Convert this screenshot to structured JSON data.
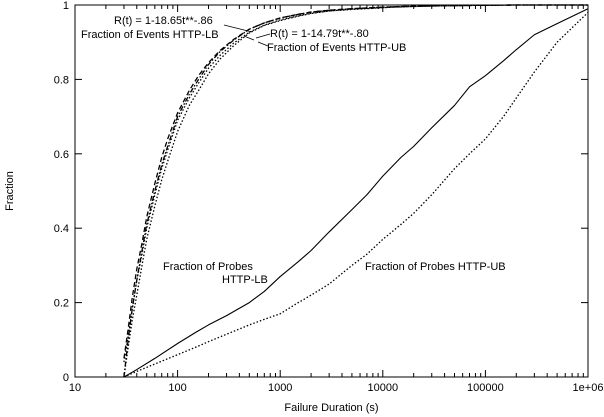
{
  "chart_data": {
    "type": "line",
    "xscale": "log",
    "xlim": [
      10,
      1000000
    ],
    "ylim": [
      0,
      1
    ],
    "xlabel": "Failure Duration (s)",
    "ylabel": "Fraction",
    "grid": false,
    "legend": "none",
    "xticks": [
      10,
      100,
      1000,
      10000,
      100000,
      1000000
    ],
    "xtick_labels": [
      "10",
      "100",
      "1000",
      "10000",
      "100000",
      "1e+06"
    ],
    "yticks": [
      0,
      0.2,
      0.4,
      0.6,
      0.8,
      1
    ],
    "ytick_labels": [
      "0",
      "0.2",
      "0.4",
      "0.6",
      "0.8",
      "1"
    ],
    "series": [
      {
        "name": "Fraction of Events HTTP-LB",
        "style": "dash-dot",
        "x": [
          30,
          33,
          36,
          40,
          45,
          50,
          60,
          70,
          80,
          100,
          130,
          160,
          200,
          260,
          350,
          500,
          700,
          1000,
          1500,
          2000,
          3000,
          5000,
          8000,
          12000,
          20000,
          40000,
          80000,
          200000,
          500000,
          1000000
        ],
        "y": [
          0,
          0.1,
          0.18,
          0.26,
          0.34,
          0.41,
          0.5,
          0.57,
          0.62,
          0.7,
          0.76,
          0.8,
          0.84,
          0.875,
          0.905,
          0.935,
          0.952,
          0.965,
          0.975,
          0.981,
          0.986,
          0.99,
          0.993,
          0.995,
          0.997,
          0.998,
          0.999,
          1.0,
          1.0,
          1.0
        ]
      },
      {
        "name": "Fraction of Events HTTP-UB",
        "style": "dotted",
        "x": [
          30,
          33,
          36,
          40,
          45,
          50,
          60,
          70,
          80,
          100,
          130,
          160,
          200,
          260,
          350,
          500,
          700,
          1000,
          1500,
          2000,
          3000,
          5000,
          8000,
          12000,
          20000,
          40000,
          80000,
          200000,
          500000,
          1000000
        ],
        "y": [
          0,
          0.08,
          0.15,
          0.22,
          0.3,
          0.37,
          0.46,
          0.53,
          0.58,
          0.66,
          0.73,
          0.77,
          0.815,
          0.855,
          0.89,
          0.925,
          0.945,
          0.958,
          0.97,
          0.977,
          0.984,
          0.988,
          0.991,
          0.994,
          0.996,
          0.998,
          0.999,
          1.0,
          1.0,
          1.0
        ]
      },
      {
        "name": "R(t) = 1-18.65t**-.86",
        "style": "dashed",
        "x": [
          30,
          33,
          36,
          40,
          45,
          50,
          60,
          70,
          80,
          100,
          130,
          160,
          200,
          260,
          350,
          500,
          700,
          1000,
          1500,
          2000,
          3000,
          5000,
          8000,
          12000,
          20000,
          40000,
          80000,
          200000,
          500000,
          1000000
        ],
        "y": [
          0.05,
          0.13,
          0.21,
          0.29,
          0.36,
          0.43,
          0.52,
          0.59,
          0.64,
          0.71,
          0.77,
          0.81,
          0.845,
          0.878,
          0.907,
          0.935,
          0.952,
          0.965,
          0.975,
          0.981,
          0.986,
          0.99,
          0.993,
          0.995,
          0.997,
          0.998,
          0.999,
          1.0,
          1.0,
          1.0
        ]
      },
      {
        "name": "R(t) = 1-14.79t**-.80",
        "style": "dotted",
        "x": [
          30,
          33,
          36,
          40,
          45,
          50,
          60,
          70,
          80,
          100,
          130,
          160,
          200,
          260,
          350,
          500,
          700,
          1000,
          1500,
          2000,
          3000,
          5000,
          8000,
          12000,
          20000,
          40000,
          80000,
          200000,
          500000,
          1000000
        ],
        "y": [
          0.04,
          0.11,
          0.18,
          0.26,
          0.33,
          0.4,
          0.49,
          0.56,
          0.61,
          0.69,
          0.75,
          0.79,
          0.83,
          0.865,
          0.897,
          0.927,
          0.946,
          0.96,
          0.971,
          0.978,
          0.984,
          0.989,
          0.992,
          0.994,
          0.996,
          0.998,
          0.999,
          1.0,
          1.0,
          1.0
        ]
      },
      {
        "name": "Fraction of Probes HTTP-LB",
        "style": "solid",
        "x": [
          30,
          40,
          60,
          100,
          150,
          200,
          300,
          500,
          700,
          1000,
          1500,
          2000,
          3000,
          5000,
          7000,
          10000,
          15000,
          20000,
          30000,
          50000,
          70000,
          100000,
          150000,
          200000,
          300000,
          500000,
          1000000
        ],
        "y": [
          0,
          0.02,
          0.05,
          0.09,
          0.12,
          0.14,
          0.165,
          0.2,
          0.23,
          0.27,
          0.31,
          0.34,
          0.39,
          0.45,
          0.49,
          0.54,
          0.59,
          0.62,
          0.67,
          0.73,
          0.78,
          0.81,
          0.85,
          0.88,
          0.92,
          0.95,
          0.99
        ]
      },
      {
        "name": "Fraction of Probes HTTP-UB",
        "style": "dotted",
        "x": [
          30,
          40,
          60,
          100,
          150,
          200,
          300,
          500,
          700,
          1000,
          1500,
          2000,
          3000,
          5000,
          7000,
          10000,
          15000,
          20000,
          30000,
          50000,
          70000,
          100000,
          150000,
          200000,
          300000,
          500000,
          1000000
        ],
        "y": [
          0,
          0.015,
          0.035,
          0.06,
          0.08,
          0.095,
          0.115,
          0.14,
          0.155,
          0.17,
          0.2,
          0.22,
          0.25,
          0.3,
          0.33,
          0.37,
          0.41,
          0.44,
          0.49,
          0.56,
          0.6,
          0.64,
          0.7,
          0.75,
          0.82,
          0.9,
          0.98
        ]
      }
    ],
    "annotations": [
      "R(t) = 1-18.65t**-.86",
      "Fraction of Events HTTP-LB",
      "R(t) = 1-14.79t**-.80",
      "Fraction of Events HTTP-UB",
      "Fraction of Probes",
      "HTTP-LB",
      "Fraction of Probes HTTP-UB"
    ]
  }
}
